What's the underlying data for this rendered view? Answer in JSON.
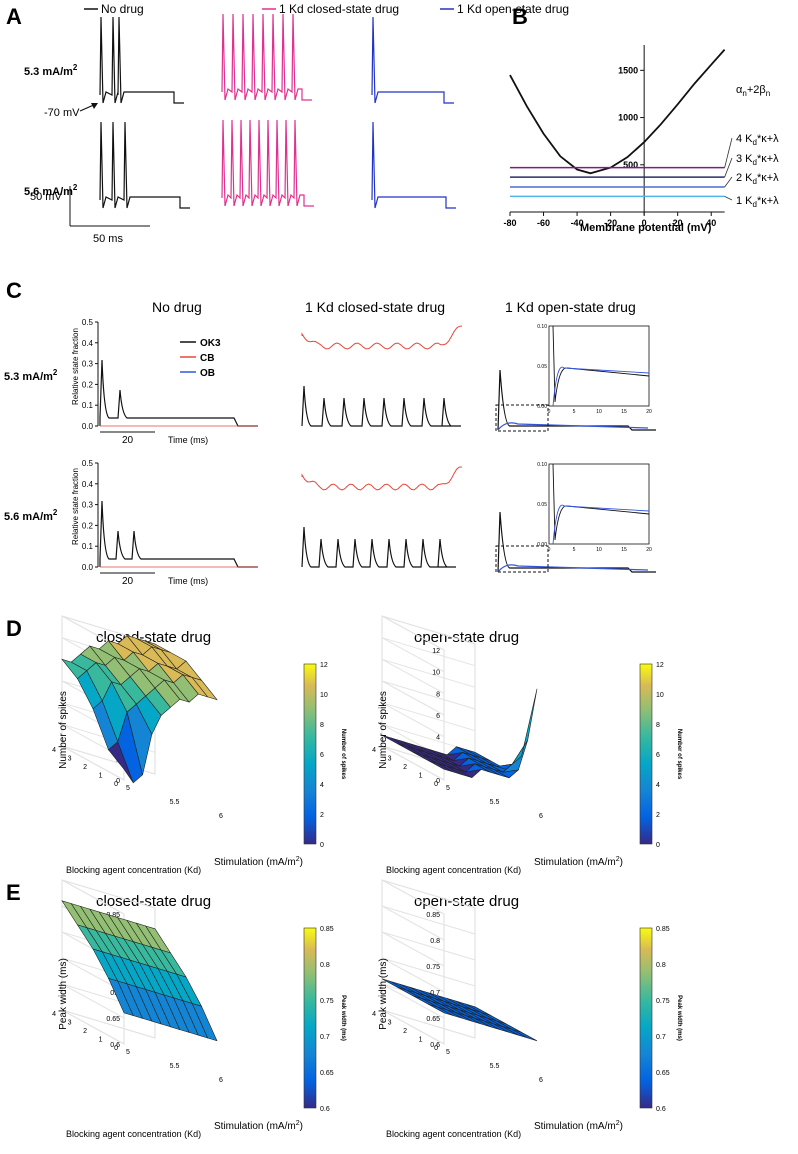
{
  "panel_labels": {
    "a": "A",
    "b": "B",
    "c": "C",
    "d": "D",
    "e": "E"
  },
  "colors": {
    "no_drug": "#111111",
    "closed": "#e0318f",
    "open": "#2233c8",
    "ok3": "#111111",
    "cb": "#e8473b",
    "ob": "#3355dd"
  },
  "panelA": {
    "legend": [
      "No drug",
      "1 Kd closed-state drug",
      "1 Kd open-state drug"
    ],
    "stim_top_value": "5.3",
    "stim_top_unit": "mA/m",
    "stim_bottom_value": "5.6",
    "stim_bottom_unit": "mA/m",
    "unit_sup": "2",
    "resting_label": "-70 mV",
    "scale_v": "50 mV",
    "scale_t": "50 ms"
  },
  "panelB": {
    "curve_label_pre": "α",
    "curve_label_sub1": "n",
    "curve_label_mid": "+2β",
    "curve_label_sub2": "n",
    "lines": [
      {
        "pre": "4 K",
        "sub": "d",
        "post": "*κ+λ",
        "color": "#7a1f80"
      },
      {
        "pre": "3 K",
        "sub": "d",
        "post": "*κ+λ",
        "color": "#2b2b6b"
      },
      {
        "pre": "2 K",
        "sub": "d",
        "post": "*κ+λ",
        "color": "#4a6fd0"
      },
      {
        "pre": "1 K",
        "sub": "d",
        "post": "*κ+λ",
        "color": "#4fb4e8"
      }
    ],
    "y_ticks": [
      "500",
      "1000",
      "1500"
    ],
    "x_ticks": [
      "-80",
      "-60",
      "-40",
      "-20",
      "0",
      "20",
      "40"
    ],
    "xlabel": "Membrane potential (mV)"
  },
  "panelC": {
    "titles": [
      "No drug",
      "1 Kd closed-state drug",
      "1 Kd open-state drug"
    ],
    "legend": [
      "OK3",
      "CB",
      "OB"
    ],
    "stim_top_value": "5.3",
    "stim_bottom_value": "5.6",
    "stim_unit": "mA/m",
    "unit_sup": "2",
    "ylabel": "Relative state fraction",
    "y_ticks": [
      "0.0",
      "0.1",
      "0.2",
      "0.3",
      "0.4",
      "0.5"
    ],
    "scale": "20",
    "time_label": "Time (ms)",
    "inset_y": [
      "0.00",
      "0.05",
      "0.10"
    ],
    "inset_x": [
      "0",
      "5",
      "10",
      "15",
      "20"
    ]
  },
  "panelD": {
    "titles": [
      "closed-state drug",
      "open-state drug"
    ],
    "zlabel": "Number of spikes",
    "z_ticks": [
      "0",
      "2",
      "4",
      "6",
      "8",
      "10",
      "12"
    ],
    "x_ticks": [
      "5",
      "5.5",
      "6"
    ],
    "y_ticks": [
      "0",
      "1",
      "2",
      "3",
      "4"
    ],
    "xlabel_pre": "Stimulation (mA/m",
    "xlabel_sup": "2",
    "xlabel_post": ")",
    "ylabel": "Blocking agent concentration (Kd)",
    "cbar_label": "Number of spikes",
    "cbar_ticks": [
      "0",
      "2",
      "4",
      "6",
      "8",
      "10",
      "12"
    ]
  },
  "panelE": {
    "titles": [
      "closed-state drug",
      "open-state drug"
    ],
    "zlabel": "Peak width (ms)",
    "z_ticks": [
      "0.6",
      "0.65",
      "0.7",
      "0.75",
      "0.8",
      "0.85"
    ],
    "x_ticks": [
      "5",
      "5.5",
      "6"
    ],
    "y_ticks": [
      "0",
      "1",
      "2",
      "3",
      "4"
    ],
    "xlabel_pre": "Stimulation (mA/m",
    "xlabel_sup": "2",
    "xlabel_post": ")",
    "ylabel": "Blocking agent concentration (Kd)",
    "cbar_label": "Peak width (ms)",
    "cbar_ticks": [
      "0.6",
      "0.65",
      "0.7",
      "0.75",
      "0.8",
      "0.85"
    ]
  },
  "chart_data": [
    {
      "type": "line",
      "panel": "B",
      "xlabel": "Membrane potential (mV)",
      "xlim": [
        -80,
        50
      ],
      "ylim": [
        0,
        1800
      ],
      "series": [
        {
          "name": "αn+2βn",
          "x": [
            -80,
            -70,
            -60,
            -50,
            -40,
            -32,
            -20,
            -10,
            0,
            10,
            20,
            30,
            40,
            48
          ],
          "y": [
            1450,
            1120,
            830,
            590,
            450,
            410,
            470,
            580,
            740,
            930,
            1140,
            1360,
            1560,
            1720
          ]
        },
        {
          "name": "4 Kd*κ+λ",
          "x": [
            -80,
            48
          ],
          "y": [
            470,
            470
          ]
        },
        {
          "name": "3 Kd*κ+λ",
          "x": [
            -80,
            48
          ],
          "y": [
            370,
            370
          ]
        },
        {
          "name": "2 Kd*κ+λ",
          "x": [
            -80,
            48
          ],
          "y": [
            265,
            265
          ]
        },
        {
          "name": "1 Kd*κ+λ",
          "x": [
            -80,
            48
          ],
          "y": [
            165,
            165
          ]
        }
      ]
    },
    {
      "type": "heatmap",
      "panel": "D",
      "title": "closed-state drug",
      "zlabel": "Number of spikes",
      "x": [
        5,
        5.1,
        5.2,
        5.3,
        5.4,
        5.5,
        5.6,
        5.7,
        5.8,
        5.9,
        6
      ],
      "y": [
        0,
        1,
        2,
        3,
        4
      ],
      "z": [
        [
          1,
          0,
          1,
          5,
          7,
          8,
          9,
          9,
          10,
          10,
          10
        ],
        [
          2,
          3,
          6,
          7,
          8,
          9,
          10,
          10,
          11,
          11,
          11
        ],
        [
          5,
          6,
          8,
          8,
          9,
          10,
          10,
          11,
          11,
          11,
          12
        ],
        [
          7,
          8,
          9,
          9,
          10,
          10,
          11,
          11,
          12,
          12,
          12
        ],
        [
          8,
          8,
          9,
          10,
          10,
          11,
          11,
          12,
          12,
          12,
          12
        ]
      ]
    },
    {
      "type": "heatmap",
      "panel": "D",
      "title": "open-state drug",
      "zlabel": "Number of spikes",
      "x": [
        5,
        5.1,
        5.2,
        5.3,
        5.4,
        5.5,
        5.6,
        5.7,
        5.8,
        5.9,
        6
      ],
      "y": [
        0,
        1,
        2,
        3,
        4
      ],
      "z": [
        [
          1,
          1,
          1,
          1,
          2,
          2,
          2,
          2,
          3,
          6,
          11
        ],
        [
          1,
          1,
          1,
          1,
          1,
          2,
          2,
          2,
          2,
          3,
          4
        ],
        [
          1,
          1,
          1,
          1,
          1,
          1,
          2,
          2,
          2,
          2,
          2
        ],
        [
          1,
          1,
          1,
          1,
          1,
          1,
          1,
          2,
          2,
          2,
          2
        ],
        [
          1,
          1,
          1,
          1,
          1,
          1,
          1,
          1,
          2,
          2,
          2
        ]
      ]
    },
    {
      "type": "heatmap",
      "panel": "E",
      "title": "closed-state drug",
      "zlabel": "Peak width (ms)",
      "x": [
        5,
        5.1,
        5.2,
        5.3,
        5.4,
        5.5,
        5.6,
        5.7,
        5.8,
        5.9,
        6
      ],
      "y": [
        0,
        1,
        2,
        3,
        4
      ],
      "z": [
        [
          0.66,
          0.66,
          0.66,
          0.66,
          0.66,
          0.66,
          0.66,
          0.66,
          0.66,
          0.66,
          0.66
        ],
        [
          0.71,
          0.71,
          0.71,
          0.71,
          0.71,
          0.71,
          0.71,
          0.71,
          0.71,
          0.71,
          0.71
        ],
        [
          0.75,
          0.75,
          0.75,
          0.75,
          0.75,
          0.75,
          0.75,
          0.75,
          0.75,
          0.75,
          0.75
        ],
        [
          0.78,
          0.78,
          0.78,
          0.78,
          0.78,
          0.78,
          0.78,
          0.78,
          0.78,
          0.78,
          0.78
        ],
        [
          0.81,
          0.81,
          0.81,
          0.81,
          0.81,
          0.81,
          0.81,
          0.81,
          0.81,
          0.81,
          0.81
        ]
      ]
    },
    {
      "type": "heatmap",
      "panel": "E",
      "title": "open-state drug",
      "zlabel": "Peak width (ms)",
      "x": [
        5,
        5.1,
        5.2,
        5.3,
        5.4,
        5.5,
        5.6,
        5.7,
        5.8,
        5.9,
        6
      ],
      "y": [
        0,
        1,
        2,
        3,
        4
      ],
      "z": [
        [
          0.66,
          0.66,
          0.66,
          0.66,
          0.66,
          0.66,
          0.66,
          0.66,
          0.66,
          0.66,
          0.66
        ],
        [
          0.66,
          0.66,
          0.66,
          0.66,
          0.66,
          0.66,
          0.66,
          0.66,
          0.66,
          0.66,
          0.66
        ],
        [
          0.66,
          0.66,
          0.66,
          0.66,
          0.66,
          0.66,
          0.66,
          0.66,
          0.66,
          0.66,
          0.66
        ],
        [
          0.66,
          0.66,
          0.66,
          0.66,
          0.66,
          0.66,
          0.66,
          0.66,
          0.66,
          0.66,
          0.66
        ],
        [
          0.66,
          0.66,
          0.66,
          0.66,
          0.66,
          0.66,
          0.66,
          0.66,
          0.66,
          0.66,
          0.66
        ]
      ]
    }
  ]
}
